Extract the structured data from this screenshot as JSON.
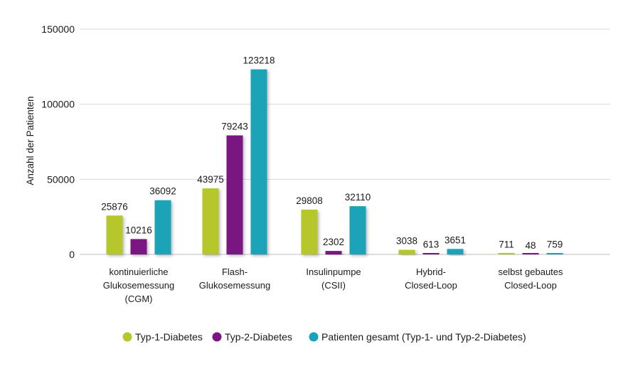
{
  "chart_data": {
    "type": "bar",
    "title": "",
    "xlabel": "",
    "ylabel": "Anzahl der Patienten",
    "ylim": [
      0,
      150000
    ],
    "yticks": [
      0,
      50000,
      100000,
      150000
    ],
    "ytick_labels": [
      "0",
      "50000",
      "100000",
      "150000"
    ],
    "grid": true,
    "legend_position": "bottom",
    "categories": [
      [
        "kontinuierliche",
        "Glukosemessung",
        "(CGM)"
      ],
      [
        "Flash-",
        "Glukosemessung"
      ],
      [
        "Insulinpumpe",
        "(CSII)"
      ],
      [
        "Hybrid-",
        "Closed-Loop"
      ],
      [
        "selbst gebautes",
        "Closed-Loop"
      ]
    ],
    "series": [
      {
        "name": "Typ-1-Diabetes",
        "color": "#b5c72c",
        "values": [
          25876,
          43975,
          29808,
          3038,
          711
        ],
        "labels": [
          "25876",
          "43975",
          "29808",
          "3038",
          "711"
        ]
      },
      {
        "name": "Typ-2-Diabetes",
        "color": "#7a1682",
        "values": [
          10216,
          79243,
          2302,
          613,
          48
        ],
        "labels": [
          "10216",
          "79243",
          "2302",
          "613",
          "48"
        ]
      },
      {
        "name": "Patienten gesamt (Typ-1- und Typ-2-Diabetes)",
        "color": "#1aa3b8",
        "values": [
          36092,
          123218,
          32110,
          3651,
          759
        ],
        "labels": [
          "36092",
          "123218",
          "32110",
          "3651",
          "759"
        ]
      }
    ]
  }
}
